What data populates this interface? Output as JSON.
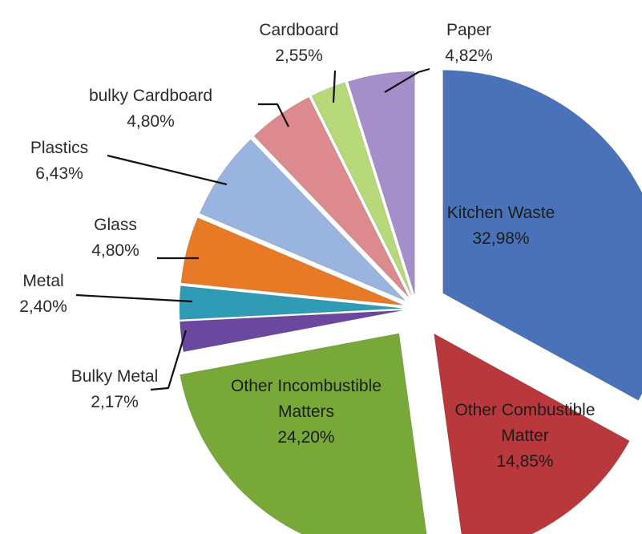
{
  "chart_data": {
    "type": "pie",
    "title": "",
    "unit": "%",
    "slices": [
      {
        "name": "Kitchen Waste",
        "value": 32.98,
        "label_lines": [
          "Kitchen Waste",
          "32,98%"
        ],
        "color": "#4a72b8"
      },
      {
        "name": "Other Combustible Matter",
        "value": 14.85,
        "label_lines": [
          "Other Combustible",
          "Matter",
          "14,85%"
        ],
        "color": "#b8383c"
      },
      {
        "name": "Other Incombustible Matters",
        "value": 24.2,
        "label_lines": [
          "Other Incombustible",
          "Matters",
          "24,20%"
        ],
        "color": "#78a838"
      },
      {
        "name": "Bulky Metal",
        "value": 2.17,
        "label_lines": [
          "Bulky Metal",
          "2,17%"
        ],
        "color": "#6a48a0"
      },
      {
        "name": "Metal",
        "value": 2.4,
        "label_lines": [
          "Metal",
          "2,40%"
        ],
        "color": "#2f9bb5"
      },
      {
        "name": "Glass",
        "value": 4.8,
        "label_lines": [
          "Glass",
          "4,80%"
        ],
        "color": "#e87a26"
      },
      {
        "name": "Plastics",
        "value": 6.43,
        "label_lines": [
          "Plastics",
          "6,43%"
        ],
        "color": "#9ab4e0"
      },
      {
        "name": "bulky Cardboard",
        "value": 4.8,
        "label_lines": [
          "bulky Cardboard",
          "4,80%"
        ],
        "color": "#dc8a8e"
      },
      {
        "name": "Cardboard",
        "value": 2.55,
        "label_lines": [
          "Cardboard",
          "2,55%"
        ],
        "color": "#b7d97a"
      },
      {
        "name": "Paper",
        "value": 4.82,
        "label_lines": [
          "Paper",
          "4,82%"
        ],
        "color": "#a58fcb"
      }
    ],
    "legend": "none"
  }
}
